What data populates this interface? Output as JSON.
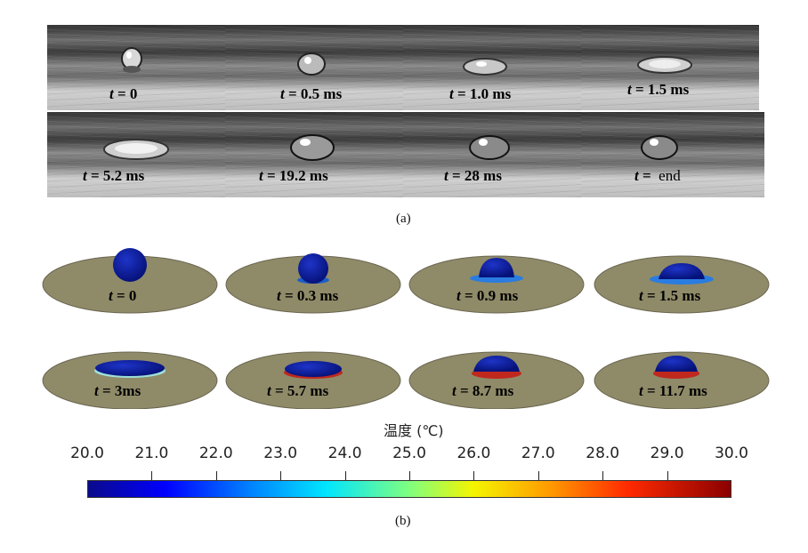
{
  "panel_a": {
    "caption": "(a)",
    "frames": [
      {
        "t_symbol": "t",
        "eq": "=",
        "value": "0"
      },
      {
        "t_symbol": "t",
        "eq": "=",
        "value": "0.5 ms"
      },
      {
        "t_symbol": "t",
        "eq": "=",
        "value": "1.0 ms"
      },
      {
        "t_symbol": "t",
        "eq": "=",
        "value": "1.5 ms"
      },
      {
        "t_symbol": "t",
        "eq": "=",
        "value": "5.2 ms"
      },
      {
        "t_symbol": "t",
        "eq": "=",
        "value": "19.2 ms"
      },
      {
        "t_symbol": "t",
        "eq": "=",
        "value": "28 ms"
      },
      {
        "t_symbol": "t",
        "eq": "=",
        "value": "end"
      }
    ]
  },
  "panel_b": {
    "caption": "(b)",
    "frames": [
      {
        "t_symbol": "t",
        "eq": "=",
        "value": "0"
      },
      {
        "t_symbol": "t",
        "eq": "=",
        "value": "0.3 ms"
      },
      {
        "t_symbol": "t",
        "eq": "=",
        "value": "0.9 ms"
      },
      {
        "t_symbol": "t",
        "eq": "=",
        "value": "1.5 ms"
      },
      {
        "t_symbol": "t",
        "eq": "=",
        "value": "3ms"
      },
      {
        "t_symbol": "t",
        "eq": "=",
        "value": "5.7 ms"
      },
      {
        "t_symbol": "t",
        "eq": "=",
        "value": "8.7 ms"
      },
      {
        "t_symbol": "t",
        "eq": "=",
        "value": "11.7 ms"
      }
    ],
    "colorbar": {
      "title": "温度 (℃)",
      "ticks": [
        "20.0",
        "21.0",
        "22.0",
        "23.0",
        "24.0",
        "25.0",
        "26.0",
        "27.0",
        "28.0",
        "29.0",
        "30.0"
      ],
      "colors": {
        "low": "#0a0a8c",
        "mid": "#f5f500",
        "high": "#8a0000",
        "plate": "#8f8a68"
      }
    }
  }
}
